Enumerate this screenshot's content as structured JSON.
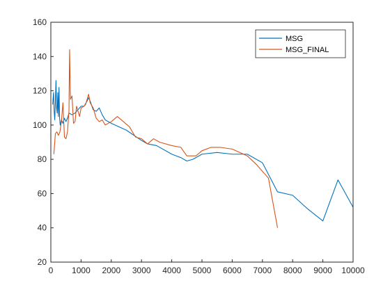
{
  "chart_data": {
    "type": "line",
    "title": "",
    "xlabel": "",
    "ylabel": "",
    "xlim": [
      0,
      10000
    ],
    "ylim": [
      20,
      160
    ],
    "xticks": [
      0,
      1000,
      2000,
      3000,
      4000,
      5000,
      6000,
      7000,
      8000,
      9000,
      10000
    ],
    "yticks": [
      20,
      40,
      60,
      80,
      100,
      120,
      140,
      160
    ],
    "grid": false,
    "legend": "top-right",
    "series": [
      {
        "name": "MSG",
        "color": "#0072BD",
        "points": [
          [
            60,
            112
          ],
          [
            90,
            119
          ],
          [
            110,
            108
          ],
          [
            130,
            103
          ],
          [
            150,
            113
          ],
          [
            170,
            126
          ],
          [
            190,
            110
          ],
          [
            210,
            107
          ],
          [
            230,
            119
          ],
          [
            250,
            105
          ],
          [
            270,
            122
          ],
          [
            290,
            104
          ],
          [
            310,
            100
          ],
          [
            350,
            103
          ],
          [
            400,
            101
          ],
          [
            450,
            104
          ],
          [
            500,
            102
          ],
          [
            550,
            104
          ],
          [
            600,
            107
          ],
          [
            700,
            106
          ],
          [
            800,
            107
          ],
          [
            900,
            109
          ],
          [
            1000,
            111
          ],
          [
            1100,
            111
          ],
          [
            1200,
            114
          ],
          [
            1250,
            116
          ],
          [
            1300,
            114
          ],
          [
            1400,
            109
          ],
          [
            1500,
            108
          ],
          [
            1600,
            110
          ],
          [
            1700,
            106
          ],
          [
            1800,
            103
          ],
          [
            2000,
            101
          ],
          [
            2500,
            97
          ],
          [
            3000,
            91
          ],
          [
            3200,
            89
          ],
          [
            3500,
            88
          ],
          [
            4000,
            83
          ],
          [
            4300,
            81
          ],
          [
            4500,
            79
          ],
          [
            4700,
            80
          ],
          [
            5000,
            83
          ],
          [
            5500,
            84
          ],
          [
            6000,
            83
          ],
          [
            6500,
            83
          ],
          [
            7000,
            78
          ],
          [
            7500,
            61
          ],
          [
            8000,
            59
          ],
          [
            8500,
            51
          ],
          [
            9000,
            44
          ],
          [
            9500,
            68
          ],
          [
            10000,
            52
          ]
        ]
      },
      {
        "name": "MSG_FINAL",
        "color": "#D95319",
        "points": [
          [
            100,
            83
          ],
          [
            150,
            95
          ],
          [
            200,
            96
          ],
          [
            250,
            94
          ],
          [
            300,
            96
          ],
          [
            350,
            102
          ],
          [
            400,
            113
          ],
          [
            450,
            93
          ],
          [
            500,
            92
          ],
          [
            550,
            96
          ],
          [
            600,
            108
          ],
          [
            620,
            144
          ],
          [
            650,
            115
          ],
          [
            700,
            117
          ],
          [
            750,
            101
          ],
          [
            800,
            102
          ],
          [
            850,
            111
          ],
          [
            900,
            108
          ],
          [
            950,
            105
          ],
          [
            1000,
            110
          ],
          [
            1100,
            111
          ],
          [
            1150,
            112
          ],
          [
            1250,
            118
          ],
          [
            1300,
            113
          ],
          [
            1400,
            110
          ],
          [
            1500,
            104
          ],
          [
            1600,
            102
          ],
          [
            1700,
            103
          ],
          [
            1800,
            100
          ],
          [
            2000,
            102
          ],
          [
            2200,
            105
          ],
          [
            2400,
            102
          ],
          [
            2600,
            99
          ],
          [
            2800,
            93
          ],
          [
            3000,
            92
          ],
          [
            3200,
            89
          ],
          [
            3400,
            92
          ],
          [
            3600,
            90
          ],
          [
            4000,
            88
          ],
          [
            4300,
            87
          ],
          [
            4500,
            82
          ],
          [
            4800,
            82
          ],
          [
            5000,
            85
          ],
          [
            5300,
            87
          ],
          [
            5600,
            87
          ],
          [
            6000,
            86
          ],
          [
            6500,
            82
          ],
          [
            6800,
            77
          ],
          [
            7200,
            69
          ],
          [
            7500,
            40
          ]
        ]
      }
    ]
  }
}
